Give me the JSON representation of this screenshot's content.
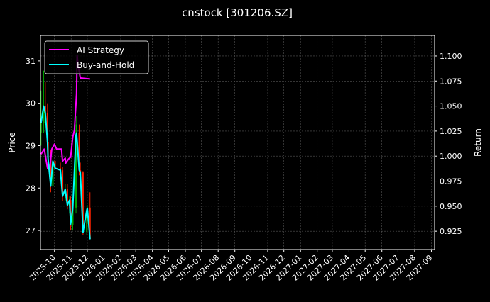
{
  "chart_data": {
    "type": "line",
    "title": "cnstock [301206.SZ]",
    "ylabel_left": "Price",
    "ylabel_right": "Return",
    "xlim": [
      "2025-09-05",
      "2027-09-07"
    ],
    "ylim_left": [
      26.55,
      31.6
    ],
    "ylim_right": [
      0.9067,
      1.1205
    ],
    "x_ticks": [
      "2025-10",
      "2025-11",
      "2025-12",
      "2026-01",
      "2026-02",
      "2026-03",
      "2026-04",
      "2026-05",
      "2026-06",
      "2026-07",
      "2026-08",
      "2026-09",
      "2026-10",
      "2026-11",
      "2026-12",
      "2027-01",
      "2027-02",
      "2027-03",
      "2027-04",
      "2027-05",
      "2027-06",
      "2027-07",
      "2027-08",
      "2027-09"
    ],
    "y_ticks_left": [
      "27",
      "28",
      "29",
      "30",
      "31"
    ],
    "y_ticks_right": [
      "0.925",
      "0.950",
      "0.975",
      "1.000",
      "1.025",
      "1.050",
      "1.075",
      "1.100"
    ],
    "grid": true,
    "legend_placement": "top-left",
    "colors": {
      "ai": "#ff00ff",
      "bh": "#00ffff",
      "up": "#00aa00",
      "down": "#ff2200",
      "grid": "#555555"
    },
    "series": [
      {
        "name": "AI Strategy",
        "axis": "right",
        "x": [
          "2025-09-06",
          "2025-09-12",
          "2025-09-18",
          "2025-09-22",
          "2025-09-26",
          "2025-10-01",
          "2025-10-05",
          "2025-10-14",
          "2025-10-16",
          "2025-10-21",
          "2025-10-22",
          "2025-10-27",
          "2025-10-31",
          "2025-11-04",
          "2025-11-07",
          "2025-11-11",
          "2025-11-12",
          "2025-11-14",
          "2025-11-18",
          "2025-12-06"
        ],
        "values": [
          1.002,
          1.007,
          0.988,
          0.986,
          1.007,
          1.012,
          1.007,
          1.007,
          0.995,
          0.998,
          0.993,
          0.997,
          0.999,
          1.019,
          1.026,
          1.062,
          1.101,
          1.09,
          1.078,
          1.077
        ]
      },
      {
        "name": "Buy-and-Hold",
        "axis": "right",
        "x": [
          "2025-09-06",
          "2025-09-11",
          "2025-09-14",
          "2025-09-18",
          "2025-09-19",
          "2025-09-24",
          "2025-09-28",
          "2025-10-02",
          "2025-10-12",
          "2025-10-16",
          "2025-10-21",
          "2025-10-25",
          "2025-10-29",
          "2025-10-31",
          "2025-11-04",
          "2025-11-10",
          "2025-11-11",
          "2025-11-16",
          "2025-11-18",
          "2025-11-23",
          "2025-11-30",
          "2025-12-01",
          "2025-12-06"
        ],
        "values": [
          1.033,
          1.05,
          1.043,
          1.014,
          0.998,
          0.97,
          0.995,
          0.988,
          0.986,
          0.96,
          0.967,
          0.951,
          0.956,
          0.932,
          0.948,
          1.021,
          1.023,
          0.986,
          0.984,
          0.924,
          0.946,
          0.948,
          0.917
        ]
      }
    ],
    "candles": {
      "axis": "left",
      "x": [
        "2025-09-06",
        "2025-09-11",
        "2025-09-14",
        "2025-09-18",
        "2025-09-19",
        "2025-09-24",
        "2025-09-28",
        "2025-10-02",
        "2025-10-12",
        "2025-10-16",
        "2025-10-21",
        "2025-10-25",
        "2025-10-29",
        "2025-10-31",
        "2025-11-04",
        "2025-11-10",
        "2025-11-11",
        "2025-11-16",
        "2025-11-18",
        "2025-11-23",
        "2025-11-30",
        "2025-12-01",
        "2025-12-06"
      ],
      "open": [
        29.3,
        29.54,
        29.93,
        29.76,
        29.09,
        28.71,
        28.04,
        28.64,
        28.47,
        28.42,
        27.8,
        27.97,
        27.59,
        27.7,
        27.13,
        27.54,
        29.26,
        29.31,
        28.42,
        28.37,
        26.97,
        27.47,
        27.54
      ],
      "high": [
        30.3,
        30.77,
        30.5,
        30.0,
        29.3,
        28.9,
        28.8,
        28.9,
        28.6,
        28.5,
        28.1,
        28.1,
        27.8,
        27.8,
        27.6,
        29.5,
        29.7,
        29.5,
        28.6,
        28.4,
        27.5,
        27.6,
        27.9
      ],
      "low": [
        29.0,
        29.3,
        29.5,
        29.0,
        28.6,
        27.9,
        28.0,
        28.3,
        28.2,
        27.7,
        27.7,
        27.5,
        27.4,
        27.0,
        27.0,
        27.4,
        29.0,
        28.3,
        28.2,
        26.9,
        26.9,
        27.3,
        26.8
      ],
      "close": [
        29.54,
        29.93,
        29.76,
        29.09,
        28.71,
        28.04,
        28.64,
        28.47,
        28.42,
        27.8,
        27.97,
        27.59,
        27.7,
        27.13,
        27.54,
        29.26,
        29.31,
        28.42,
        28.37,
        26.97,
        27.47,
        27.54,
        26.8
      ]
    }
  }
}
